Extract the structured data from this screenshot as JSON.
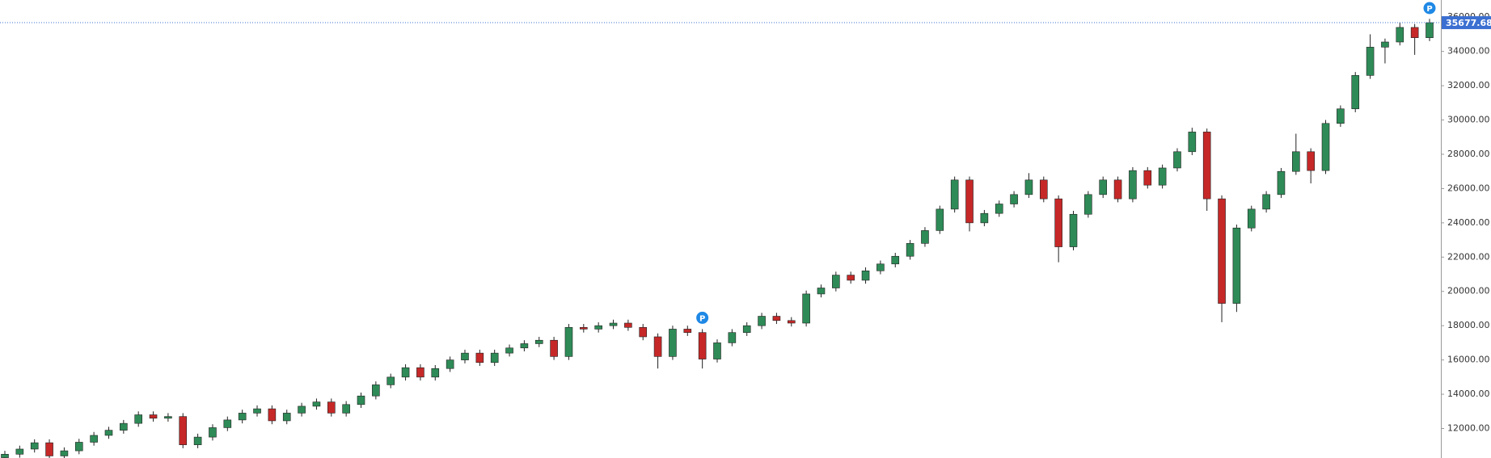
{
  "chart_data": {
    "type": "candlestick",
    "up_color": "#2e8b57",
    "down_color": "#c62828",
    "grid": false,
    "ylim": [
      10280,
      37000
    ],
    "yticks": [
      {
        "value": 12000,
        "label": "12000.00"
      },
      {
        "value": 14000,
        "label": "14000.00"
      },
      {
        "value": 16000,
        "label": "16000.00"
      },
      {
        "value": 18000,
        "label": "18000.00"
      },
      {
        "value": 20000,
        "label": "20000.00"
      },
      {
        "value": 22000,
        "label": "22000.00"
      },
      {
        "value": 24000,
        "label": "24000.00"
      },
      {
        "value": 26000,
        "label": "26000.00"
      },
      {
        "value": 28000,
        "label": "28000.00"
      },
      {
        "value": 30000,
        "label": "30000.00"
      },
      {
        "value": 32000,
        "label": "32000.00"
      },
      {
        "value": 34000,
        "label": "34000.00"
      },
      {
        "value": 36000,
        "label": "36000.00"
      }
    ],
    "last_price": 35677.68,
    "last_price_color": "#3b6fd1",
    "markers": [
      {
        "label": "P",
        "index": 47
      },
      {
        "label": "P",
        "index": 96
      }
    ],
    "open": [
      10300,
      10500,
      10800,
      11170,
      10400,
      10700,
      11200,
      11600,
      11900,
      12300,
      12800,
      12600,
      12700,
      11050,
      11500,
      12050,
      12500,
      12900,
      13150,
      12450,
      12900,
      13300,
      13550,
      12900,
      13400,
      13900,
      14550,
      15000,
      15550,
      15000,
      15500,
      16000,
      16400,
      15850,
      16400,
      16700,
      16950,
      17150,
      16200,
      17900,
      17800,
      18000,
      18150,
      17900,
      17350,
      16200,
      17800,
      17600,
      16050,
      17000,
      17600,
      18000,
      18550,
      18300,
      18150,
      19850,
      20200,
      20950,
      20650,
      21200,
      21600,
      22050,
      22800,
      23550,
      24800,
      26500,
      24000,
      24550,
      25100,
      25650,
      26500,
      25400,
      22600,
      24500,
      25650,
      26500,
      25400,
      27050,
      26200,
      27200,
      28150,
      29300,
      25400,
      19300,
      23700,
      24800,
      25650,
      27000,
      28150,
      27050,
      29800,
      30650,
      32600,
      34250,
      34550,
      35400,
      34800
    ],
    "high": [
      10700,
      11000,
      11370,
      11370,
      10900,
      11400,
      11800,
      12100,
      12500,
      13000,
      13000,
      12900,
      12900,
      11700,
      12250,
      12700,
      13100,
      13350,
      13350,
      13100,
      13500,
      13750,
      13750,
      13600,
      14100,
      14750,
      15200,
      15750,
      15750,
      15700,
      16200,
      16600,
      16600,
      16600,
      16900,
      17150,
      17350,
      17350,
      18100,
      18100,
      18200,
      18350,
      18350,
      18100,
      17550,
      18000,
      18000,
      17800,
      17200,
      17800,
      18200,
      18750,
      18750,
      18500,
      20050,
      20400,
      21150,
      21150,
      21400,
      21800,
      22250,
      23000,
      23750,
      25000,
      26700,
      26700,
      24750,
      25300,
      25850,
      26900,
      26700,
      25600,
      24700,
      25850,
      26700,
      26700,
      27250,
      27250,
      27400,
      28350,
      29550,
      29500,
      25600,
      23900,
      25000,
      25850,
      27200,
      29200,
      28350,
      30000,
      30850,
      32800,
      35000,
      34750,
      35700,
      35600,
      35900
    ],
    "low": [
      10100,
      10300,
      10600,
      10200,
      10200,
      10500,
      11000,
      11400,
      11700,
      12100,
      12400,
      12400,
      10850,
      10850,
      11300,
      11850,
      12300,
      12700,
      12250,
      12250,
      12700,
      13100,
      12700,
      12700,
      13200,
      13700,
      14350,
      14800,
      14800,
      14800,
      15300,
      15800,
      15650,
      15650,
      16200,
      16500,
      16750,
      16000,
      16000,
      17600,
      17600,
      17800,
      17700,
      17150,
      15500,
      16000,
      17400,
      15500,
      15850,
      16800,
      17400,
      17800,
      18100,
      17950,
      17950,
      19650,
      20000,
      20450,
      20450,
      21000,
      21400,
      21850,
      22600,
      23350,
      24600,
      23500,
      23800,
      24350,
      24900,
      25450,
      25200,
      21700,
      22400,
      24300,
      25450,
      25200,
      25200,
      26000,
      26000,
      27000,
      27950,
      24700,
      18200,
      18800,
      23500,
      24600,
      25450,
      26800,
      26300,
      26850,
      29600,
      30450,
      32400,
      33300,
      34350,
      33800,
      34600
    ],
    "close": [
      10500,
      10800,
      11170,
      10400,
      10700,
      11200,
      11600,
      11900,
      12300,
      12800,
      12600,
      12700,
      11050,
      11500,
      12050,
      12500,
      12900,
      13150,
      12450,
      12900,
      13300,
      13550,
      12900,
      13400,
      13900,
      14550,
      15000,
      15550,
      15000,
      15500,
      16000,
      16400,
      15850,
      16400,
      16700,
      16950,
      17150,
      16200,
      17900,
      17800,
      18000,
      18150,
      17900,
      17350,
      16200,
      17800,
      17600,
      16050,
      17000,
      17600,
      18000,
      18550,
      18300,
      18150,
      19850,
      20200,
      20950,
      20650,
      21200,
      21600,
      22050,
      22800,
      23550,
      24800,
      26500,
      24000,
      24550,
      25100,
      25650,
      26500,
      25400,
      22600,
      24500,
      25650,
      26500,
      25400,
      27050,
      26200,
      27200,
      28150,
      29300,
      25400,
      19300,
      23700,
      24800,
      25650,
      27000,
      28150,
      27050,
      29800,
      30650,
      32600,
      34250,
      34550,
      35400,
      34800,
      35677.68
    ]
  }
}
